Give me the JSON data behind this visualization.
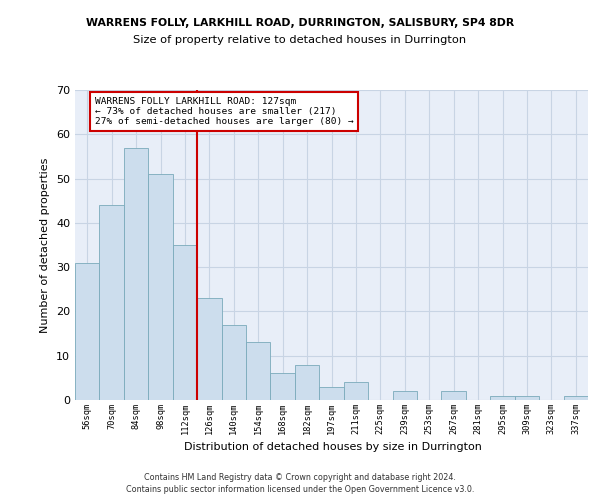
{
  "title_line1": "WARRENS FOLLY, LARKHILL ROAD, DURRINGTON, SALISBURY, SP4 8DR",
  "title_line2": "Size of property relative to detached houses in Durrington",
  "xlabel": "Distribution of detached houses by size in Durrington",
  "ylabel": "Number of detached properties",
  "categories": [
    "56sqm",
    "70sqm",
    "84sqm",
    "98sqm",
    "112sqm",
    "126sqm",
    "140sqm",
    "154sqm",
    "168sqm",
    "182sqm",
    "197sqm",
    "211sqm",
    "225sqm",
    "239sqm",
    "253sqm",
    "267sqm",
    "281sqm",
    "295sqm",
    "309sqm",
    "323sqm",
    "337sqm"
  ],
  "values": [
    31,
    44,
    57,
    51,
    35,
    23,
    17,
    13,
    6,
    8,
    3,
    4,
    0,
    2,
    0,
    2,
    0,
    1,
    1,
    0,
    1
  ],
  "bar_color": "#ccdded",
  "bar_edge_color": "#7aaabb",
  "grid_color": "#c8d4e4",
  "background_color": "#e8eef8",
  "vline_color": "#cc0000",
  "annotation_text_line1": "WARRENS FOLLY LARKHILL ROAD: 127sqm",
  "annotation_text_line2": "← 73% of detached houses are smaller (217)",
  "annotation_text_line3": "27% of semi-detached houses are larger (80) →",
  "ylim": [
    0,
    70
  ],
  "yticks": [
    0,
    10,
    20,
    30,
    40,
    50,
    60,
    70
  ],
  "footer_line1": "Contains HM Land Registry data © Crown copyright and database right 2024.",
  "footer_line2": "Contains public sector information licensed under the Open Government Licence v3.0."
}
